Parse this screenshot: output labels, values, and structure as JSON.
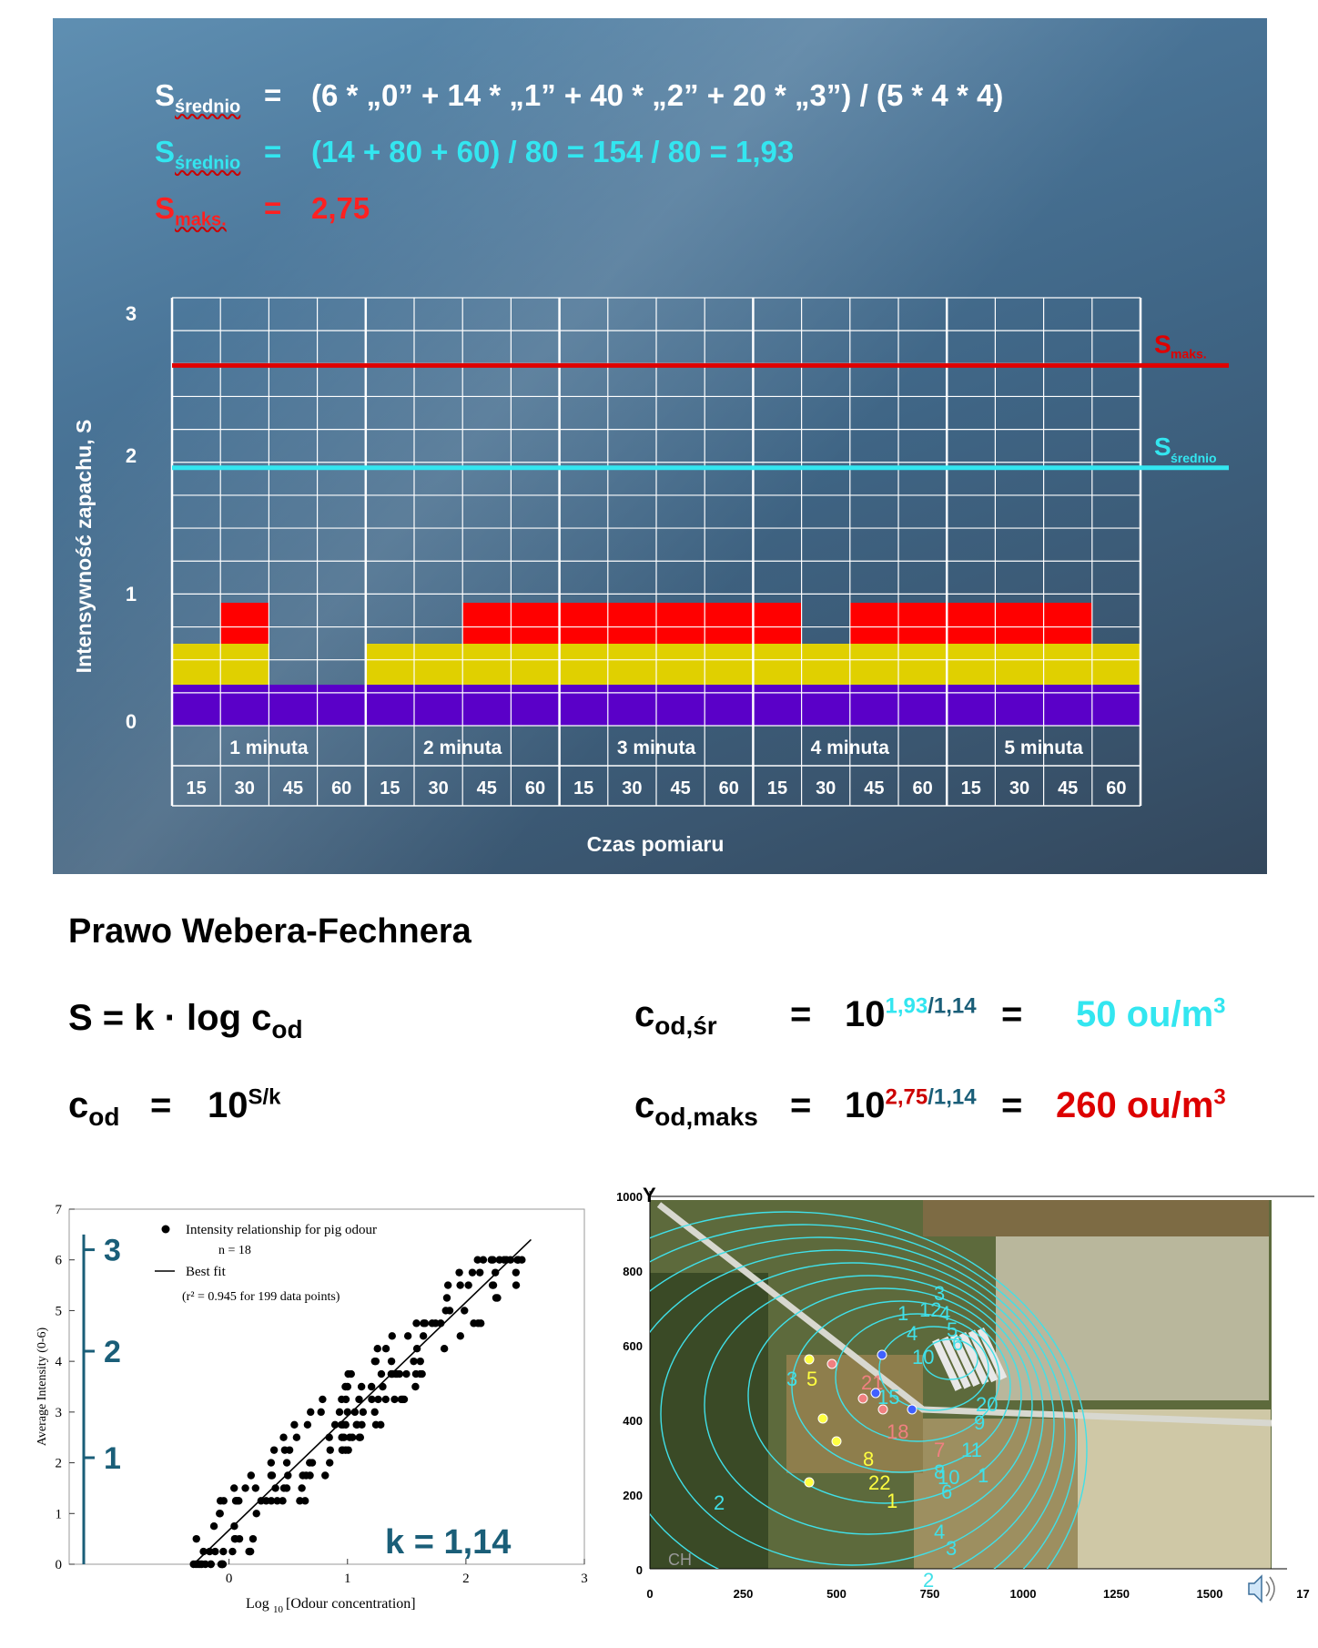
{
  "formulas": {
    "row1": {
      "symbol": "S",
      "sub": "średnio",
      "expr": "(6 * „0” + 14 * „1” + 40 * „2” + 20 * „3”) / (5 * 4 * 4)",
      "color": "#ffffff"
    },
    "row2": {
      "symbol": "S",
      "sub": "średnio",
      "expr": "(14 + 80 + 60) / 80 = 154 / 80 = 1,93",
      "color": "#33e6f0"
    },
    "row3": {
      "symbol": "S",
      "sub": "maks.",
      "expr": "2,75",
      "color": "#ff2020"
    }
  },
  "chart_data": [
    {
      "type": "heatmap",
      "ylabel": "Intensywność zapachu, S",
      "xlabel": "Czas pomiaru",
      "y_ticks": [
        "0",
        "1",
        "2",
        "3"
      ],
      "groups": [
        "1 minuta",
        "2 minuta",
        "3 minuta",
        "4 minuta",
        "5 minuta"
      ],
      "columns": [
        "15",
        "30",
        "45",
        "60"
      ],
      "column_values": [
        [
          2,
          3,
          1,
          1
        ],
        [
          2,
          2,
          3,
          3
        ],
        [
          3,
          3,
          3,
          3
        ],
        [
          3,
          2,
          3,
          3
        ],
        [
          3,
          3,
          3,
          2
        ]
      ],
      "s_max": 2.75,
      "s_mean": 1.93,
      "s_max_label": "S",
      "s_max_sub": "maks.",
      "s_mean_label": "S",
      "s_mean_sub": "średnio",
      "level_colors": [
        "#5a00c8",
        "#e0d000",
        "#ff0000",
        "#009000"
      ],
      "line_colors": {
        "max": "#e00000",
        "mean": "#33e6f0"
      }
    },
    {
      "type": "scatter",
      "ylabel": "Average Intensity (0-6)",
      "xlabel": "Log",
      "xlabel_sub": "10",
      "xlabel_rest": " [Odour concentration]",
      "xlim": [
        -1,
        3
      ],
      "ylim": [
        0,
        7
      ],
      "x_ticks": [
        "0",
        "1",
        "2",
        "3"
      ],
      "y_ticks": [
        "0",
        "1",
        "2",
        "3",
        "4",
        "5",
        "6",
        "7"
      ],
      "legend_points": "Intensity relationship for pig odour",
      "legend_n": "n = 18",
      "legend_line": "Best fit",
      "legend_r2": "(r² = 0.945 for 199 data points)",
      "fit_line": [
        [
          -0.3,
          0
        ],
        [
          2.55,
          6.4
        ]
      ],
      "scale_labels": [
        "3",
        "2",
        "1"
      ],
      "k_label": "k =  1,14"
    },
    {
      "type": "map",
      "y_axis_label": "Y",
      "x_ticks": [
        "0",
        "250",
        "500",
        "750",
        "1000",
        "1250",
        "1500",
        "17"
      ],
      "y_ticks": [
        "1000",
        "800",
        "600",
        "400",
        "200",
        "0"
      ],
      "contour_labels": [
        "3",
        "4",
        "12",
        "1",
        "4",
        "5",
        "6",
        "10",
        "3",
        "5",
        "21",
        "15",
        "20",
        "18",
        "7",
        "8",
        "10",
        "1",
        "22",
        "8",
        "6",
        "2",
        "1",
        "4",
        "3",
        "2",
        "9",
        "11"
      ],
      "corner_label": "CH"
    }
  ],
  "law": {
    "title": "Prawo Webera-Fechnera",
    "eq1_lhs": "S = k · log c",
    "eq1_sub": "od",
    "eq2_c": "c",
    "eq2_sub": "od",
    "eq2_eq": "=",
    "eq2_base": "10",
    "eq2_exp": "S/k",
    "r1_c": "c",
    "r1_sub": "od,śr",
    "r1_eq": "=",
    "r1_base": "10",
    "r1_exp_a": "1,93",
    "r1_exp_b": "/1,14",
    "r1_eq2": "=",
    "r1_val": "50 ou/m",
    "r1_val_sup": "3",
    "r2_c": "c",
    "r2_sub": "od,maks",
    "r2_eq": "=",
    "r2_base": "10",
    "r2_exp_a": "2,75",
    "r2_exp_b": "/1,14",
    "r2_eq2": "=",
    "r2_val": "260 ou/m",
    "r2_val_sup": "3"
  },
  "colors": {
    "cyan": "#33e6f0",
    "red": "#dd0000",
    "dark_teal": "#1a5e78"
  },
  "speaker_icon": "speaker-icon"
}
